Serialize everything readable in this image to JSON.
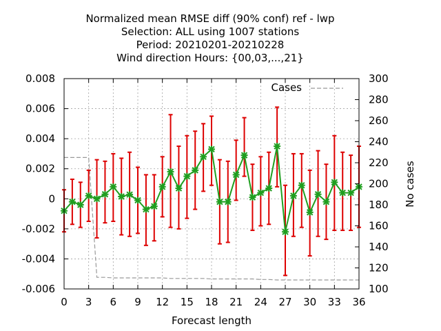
{
  "chart_data": {
    "type": "line",
    "title_lines": [
      "Normalized mean RMSE diff (90% conf) ref - lwp",
      "Selection: ALL using  1007 stations",
      "Period: 20210201-20210228",
      "Wind direction   Hours: {00,03,...,21}"
    ],
    "xlabel": "Forecast length",
    "ylabel": "",
    "y2label": "No cases",
    "xlim": [
      0,
      36
    ],
    "ylim": [
      -0.006,
      0.008
    ],
    "y2lim": [
      100,
      300
    ],
    "x_ticks": [
      0,
      3,
      6,
      9,
      12,
      15,
      18,
      21,
      24,
      27,
      30,
      33,
      36
    ],
    "y_ticks": [
      "0.008",
      "0.006",
      "0.004",
      "0.002",
      "0",
      "-0.002",
      "-0.004",
      "-0.006"
    ],
    "y_tick_values": [
      0.008,
      0.006,
      0.004,
      0.002,
      0,
      -0.002,
      -0.004,
      -0.006
    ],
    "y2_ticks": [
      300,
      280,
      260,
      240,
      220,
      200,
      180,
      160,
      140,
      120,
      100
    ],
    "grid": true,
    "legend": {
      "position": "top-right",
      "entries": [
        "Cases"
      ]
    },
    "colors": {
      "line": "#1f9e1f",
      "marker": "#1f9e1f",
      "errorbar": "#dd0000",
      "cases": "#999999",
      "grid": "#a0a0a0"
    },
    "series": [
      {
        "kind": "mean-with-errorbars",
        "x": [
          0,
          1,
          2,
          3,
          4,
          5,
          6,
          7,
          8,
          9,
          10,
          11,
          12,
          13,
          14,
          15,
          16,
          17,
          18,
          19,
          20,
          21,
          22,
          23,
          24,
          25,
          26,
          27,
          28,
          29,
          30,
          31,
          32,
          33,
          34,
          35,
          36
        ],
        "values": [
          -0.0008,
          -0.0002,
          -0.0004,
          0.0002,
          0.0,
          0.0003,
          0.0008,
          0.00015,
          0.00028,
          -0.0001,
          -0.0007,
          -0.0005,
          0.0008,
          0.0018,
          0.0007,
          0.0015,
          0.0019,
          0.0028,
          0.0033,
          -0.0002,
          -0.0002,
          0.0016,
          0.0029,
          0.0001,
          0.0004,
          0.0007,
          0.0035,
          -0.0022,
          0.0002,
          0.0009,
          -0.0009,
          0.0003,
          -0.0002,
          0.0011,
          0.0004,
          0.0004,
          0.0008
        ],
        "lower": [
          -0.0022,
          -0.0017,
          -0.0019,
          -0.0015,
          -0.0026,
          -0.0016,
          -0.0015,
          -0.0024,
          -0.0025,
          -0.0023,
          -0.0031,
          -0.0028,
          -0.0012,
          -0.0019,
          -0.002,
          -0.0013,
          -0.0007,
          0.0005,
          0.0009,
          -0.003,
          -0.0029,
          -0.0001,
          0.0015,
          -0.0021,
          -0.0018,
          -0.0017,
          0.0008,
          -0.0051,
          -0.0025,
          -0.0019,
          -0.0038,
          -0.0025,
          -0.0027,
          -0.0021,
          -0.0021,
          -0.0021,
          -0.0019
        ],
        "upper": [
          0.0006,
          0.0013,
          0.0011,
          0.0019,
          0.0026,
          0.0025,
          0.003,
          0.0027,
          0.0031,
          0.0021,
          0.0016,
          0.0016,
          0.0028,
          0.0056,
          0.0035,
          0.0042,
          0.0045,
          0.005,
          0.0055,
          0.0026,
          0.0025,
          0.0039,
          0.0054,
          0.0023,
          0.0028,
          0.0031,
          0.0061,
          0.0009,
          0.003,
          0.003,
          0.0019,
          0.0032,
          0.0023,
          0.0042,
          0.0031,
          0.0029,
          0.0035
        ]
      },
      {
        "name": "Cases",
        "axis": "right",
        "style": "dashed",
        "x": [
          0,
          1,
          2,
          3,
          4,
          5,
          6,
          7,
          8,
          9,
          10,
          11,
          12,
          13,
          14,
          15,
          16,
          17,
          18,
          19,
          20,
          21,
          22,
          23,
          24,
          25,
          26,
          27,
          28,
          29,
          30,
          31,
          32,
          33,
          34,
          35,
          36
        ],
        "values": [
          225,
          225,
          225,
          225,
          111,
          111,
          110.5,
          110.5,
          110.5,
          110.5,
          110.5,
          110.5,
          110.5,
          110,
          110,
          110,
          110,
          110,
          109.5,
          109.5,
          109.5,
          109.5,
          109.5,
          109.5,
          109,
          109,
          108.5,
          108.5,
          108.5,
          108.5,
          108.5,
          108.5,
          108.5,
          108.5,
          108.5,
          108.5,
          108.5
        ]
      }
    ]
  }
}
